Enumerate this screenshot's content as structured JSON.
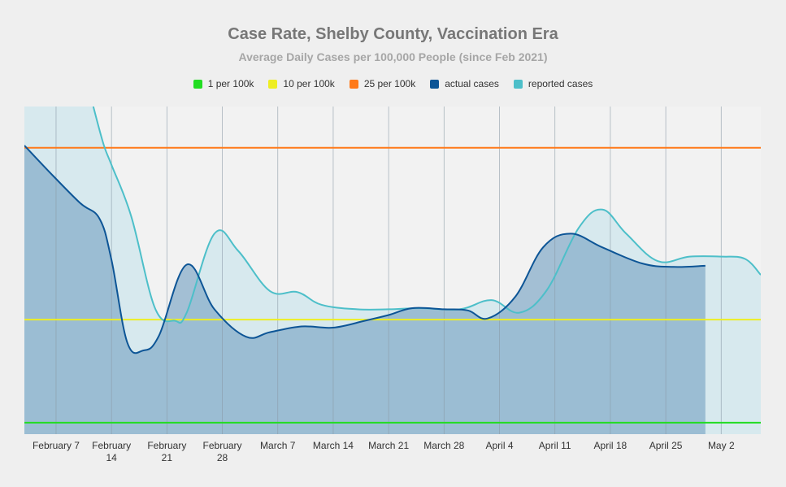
{
  "chart_data": {
    "type": "area",
    "title": "Case Rate, Shelby County, Vaccination Era",
    "subtitle": "Average Daily Cases per 100,000 People (since Feb 2021)",
    "xlabel": "",
    "ylabel": "",
    "xlim": [
      0,
      93
    ],
    "ylim": [
      0,
      28.6
    ],
    "x_ticks": [
      {
        "x": 4,
        "label": [
          "February 7"
        ]
      },
      {
        "x": 11,
        "label": [
          "February",
          "14"
        ]
      },
      {
        "x": 18,
        "label": [
          "February",
          "21"
        ]
      },
      {
        "x": 25,
        "label": [
          "February",
          "28"
        ]
      },
      {
        "x": 32,
        "label": [
          "March 7"
        ]
      },
      {
        "x": 39,
        "label": [
          "March 14"
        ]
      },
      {
        "x": 46,
        "label": [
          "March 21"
        ]
      },
      {
        "x": 53,
        "label": [
          "March 28"
        ]
      },
      {
        "x": 60,
        "label": [
          "April 4"
        ]
      },
      {
        "x": 67,
        "label": [
          "April 11"
        ]
      },
      {
        "x": 74,
        "label": [
          "April 18"
        ]
      },
      {
        "x": 81,
        "label": [
          "April 25"
        ]
      },
      {
        "x": 88,
        "label": [
          "May 2"
        ]
      }
    ],
    "thresholds": [
      {
        "name": "1 per 100k",
        "value": 1,
        "color": "#22dd22"
      },
      {
        "name": "10 per 100k",
        "value": 10,
        "color": "#eeee22"
      },
      {
        "name": "25 per 100k",
        "value": 25,
        "color": "#ff7a1a"
      }
    ],
    "series": [
      {
        "name": "reported cases",
        "color": "#4dbfc9",
        "fill": "rgba(205,230,236,0.75)",
        "points": [
          [
            8.7,
            28.6
          ],
          [
            10,
            25.3
          ],
          [
            11,
            23.5
          ],
          [
            13.5,
            19.0
          ],
          [
            16.5,
            11.0
          ],
          [
            19,
            9.9
          ],
          [
            20.5,
            10.6
          ],
          [
            24,
            17.5
          ],
          [
            27,
            16.0
          ],
          [
            31,
            12.5
          ],
          [
            34.5,
            12.4
          ],
          [
            37.5,
            11.3
          ],
          [
            42,
            10.9
          ],
          [
            46,
            10.9
          ],
          [
            50,
            11.0
          ],
          [
            55,
            10.9
          ],
          [
            59,
            11.7
          ],
          [
            62.5,
            10.6
          ],
          [
            66,
            12.6
          ],
          [
            70,
            18.0
          ],
          [
            73,
            19.6
          ],
          [
            76,
            17.5
          ],
          [
            80,
            15.1
          ],
          [
            84,
            15.5
          ],
          [
            88,
            15.5
          ],
          [
            91,
            15.3
          ],
          [
            93,
            13.9
          ]
        ]
      },
      {
        "name": "actual cases",
        "color": "#0d5596",
        "fill": "rgba(130,170,200,0.7)",
        "points": [
          [
            0,
            25.2
          ],
          [
            3,
            23.0
          ],
          [
            7,
            20.2
          ],
          [
            9.5,
            18.8
          ],
          [
            11,
            15.2
          ],
          [
            13,
            8.0
          ],
          [
            15,
            7.3
          ],
          [
            17,
            8.6
          ],
          [
            20.5,
            14.8
          ],
          [
            24,
            10.9
          ],
          [
            28,
            8.5
          ],
          [
            31,
            8.9
          ],
          [
            35,
            9.4
          ],
          [
            39,
            9.3
          ],
          [
            43,
            9.9
          ],
          [
            46,
            10.4
          ],
          [
            49,
            11.0
          ],
          [
            53,
            10.9
          ],
          [
            56,
            10.8
          ],
          [
            58.5,
            10.1
          ],
          [
            62,
            12.0
          ],
          [
            65.5,
            16.3
          ],
          [
            69,
            17.5
          ],
          [
            73,
            16.3
          ],
          [
            78,
            14.9
          ],
          [
            82,
            14.6
          ],
          [
            86,
            14.7
          ]
        ]
      }
    ]
  },
  "legend": [
    {
      "label": "1 per 100k",
      "color": "#22dd22"
    },
    {
      "label": "10 per 100k",
      "color": "#eeee22"
    },
    {
      "label": "25 per 100k",
      "color": "#ff7a1a"
    },
    {
      "label": "actual cases",
      "color": "#0d5596"
    },
    {
      "label": "reported cases",
      "color": "#4dbfc9"
    }
  ]
}
